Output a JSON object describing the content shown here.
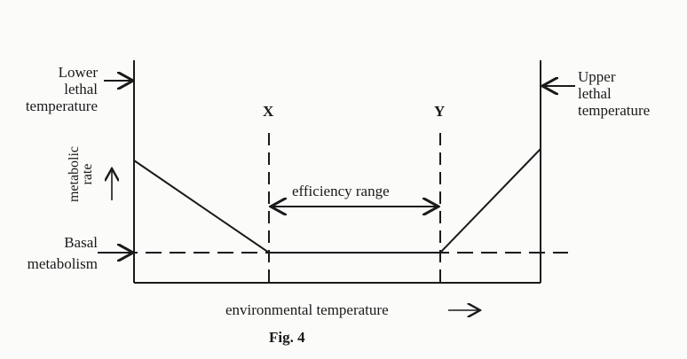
{
  "labels": {
    "lower_lethal": [
      "Lower",
      "lethal",
      "temperature"
    ],
    "upper_lethal": [
      "Upper",
      "lethal",
      "temperature"
    ],
    "x_marker": "X",
    "y_marker": "Y",
    "metabolic_rate": [
      "metabolic",
      "rate"
    ],
    "efficiency_range": "efficiency range",
    "basal": [
      "Basal",
      "metabolism"
    ],
    "x_axis": "environmental temperature",
    "caption": "Fig. 4"
  },
  "colors": {
    "ink": "#1a1a1a",
    "background": "#fbfbfa"
  }
}
